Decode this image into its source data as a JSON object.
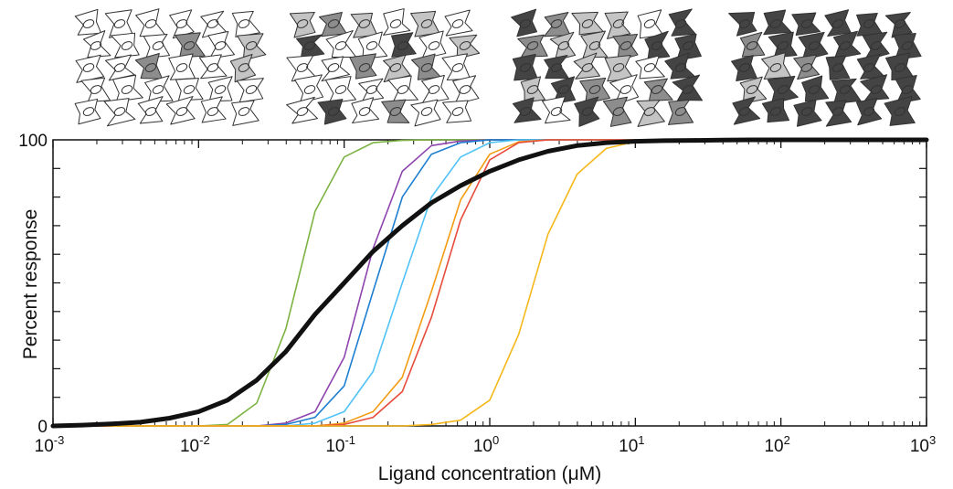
{
  "chart_data": {
    "type": "line",
    "xscale": "log",
    "xlim": [
      0.001,
      1000
    ],
    "ylim": [
      0,
      100
    ],
    "xlabel": "Ligand concentration (μM)",
    "ylabel": "Percent response",
    "x_ticks": [
      {
        "base": "10",
        "exp": "-3",
        "value": 0.001
      },
      {
        "base": "10",
        "exp": "-2",
        "value": 0.01
      },
      {
        "base": "10",
        "exp": "-1",
        "value": 0.1
      },
      {
        "base": "10",
        "exp": "0",
        "value": 1
      },
      {
        "base": "10",
        "exp": "1",
        "value": 10
      },
      {
        "base": "10",
        "exp": "2",
        "value": 100
      },
      {
        "base": "10",
        "exp": "3",
        "value": 1000
      }
    ],
    "y_tick_labels": [
      {
        "text": "0",
        "value": 0
      },
      {
        "text": "100",
        "value": 100
      }
    ],
    "y_minor_ticks": [
      10,
      20,
      30,
      40,
      50,
      60,
      70,
      80,
      90
    ],
    "x": [
      0.001,
      0.00158,
      0.00251,
      0.00398,
      0.00631,
      0.01,
      0.0158,
      0.0251,
      0.0398,
      0.0631,
      0.1,
      0.158,
      0.251,
      0.398,
      0.631,
      1,
      1.58,
      2.51,
      3.98,
      6.31,
      10,
      15.8,
      25.1,
      39.8,
      63.1,
      100,
      158,
      251,
      398,
      631,
      1000
    ],
    "series": [
      {
        "color": "#7cb342",
        "width": 1.6,
        "values": [
          0,
          0,
          0,
          0,
          0,
          0,
          0.5,
          8,
          34,
          75,
          94,
          99,
          99.8,
          100,
          100,
          100,
          100,
          100,
          100,
          100,
          100,
          100,
          100,
          100,
          100,
          100,
          100,
          100,
          100,
          100,
          100
        ]
      },
      {
        "color": "#8e44ad",
        "width": 1.6,
        "values": [
          0,
          0,
          0,
          0,
          0,
          0,
          0,
          0,
          1,
          5,
          24,
          62,
          89,
          98,
          99.6,
          100,
          100,
          100,
          100,
          100,
          100,
          100,
          100,
          100,
          100,
          100,
          100,
          100,
          100,
          100,
          100
        ]
      },
      {
        "color": "#1e7fd0",
        "width": 1.6,
        "values": [
          0,
          0,
          0,
          0,
          0,
          0,
          0,
          0,
          0.5,
          3,
          14,
          47,
          80,
          95,
          99,
          100,
          100,
          100,
          100,
          100,
          100,
          100,
          100,
          100,
          100,
          100,
          100,
          100,
          100,
          100,
          100
        ]
      },
      {
        "color": "#4fc3f7",
        "width": 1.6,
        "values": [
          0,
          0,
          0,
          0,
          0,
          0,
          0,
          0,
          0,
          1,
          5,
          19,
          50,
          80,
          94,
          99,
          100,
          100,
          100,
          100,
          100,
          100,
          100,
          100,
          100,
          100,
          100,
          100,
          100,
          100,
          100
        ]
      },
      {
        "color": "#f39c12",
        "width": 1.6,
        "values": [
          0,
          0,
          0,
          0,
          0,
          0,
          0,
          0,
          0,
          0,
          1,
          5,
          17,
          47,
          79,
          95,
          99.3,
          100,
          100,
          100,
          100,
          100,
          100,
          100,
          100,
          100,
          100,
          100,
          100,
          100,
          100
        ]
      },
      {
        "color": "#e74c3c",
        "width": 1.6,
        "values": [
          0,
          0,
          0,
          0,
          0,
          0,
          0,
          0,
          0,
          0,
          0.5,
          3,
          12,
          38,
          72,
          93,
          99,
          100,
          100,
          100,
          100,
          100,
          100,
          100,
          100,
          100,
          100,
          100,
          100,
          100,
          100
        ]
      },
      {
        "color": "#f5b71a",
        "width": 1.6,
        "values": [
          0,
          0,
          0,
          0,
          0,
          0,
          0,
          0,
          0,
          0,
          0,
          0,
          0,
          0.5,
          2,
          9,
          32,
          67,
          88,
          97,
          99.4,
          100,
          100,
          100,
          100,
          100,
          100,
          100,
          100,
          100,
          100
        ]
      },
      {
        "color": "#111111",
        "width": 5,
        "values": [
          0,
          0.3,
          0.7,
          1.3,
          2.7,
          5,
          9,
          16,
          26,
          39,
          50,
          61,
          70,
          78,
          84,
          89,
          93,
          96,
          98,
          99,
          99.5,
          99.7,
          99.8,
          99.9,
          100,
          100,
          100,
          100,
          100,
          100,
          100
        ]
      }
    ]
  },
  "cell_panels": {
    "fill_colors": [
      "#ffffff",
      "#c4c4c4",
      "#8d8d8d",
      "#444444"
    ],
    "panels": [
      {
        "fractions": [
          0.84,
          0.08,
          0.08,
          0.0
        ]
      },
      {
        "fractions": [
          0.6,
          0.16,
          0.12,
          0.12
        ]
      },
      {
        "fractions": [
          0.12,
          0.26,
          0.22,
          0.4
        ]
      },
      {
        "fractions": [
          0.0,
          0.06,
          0.08,
          0.86
        ]
      }
    ]
  }
}
